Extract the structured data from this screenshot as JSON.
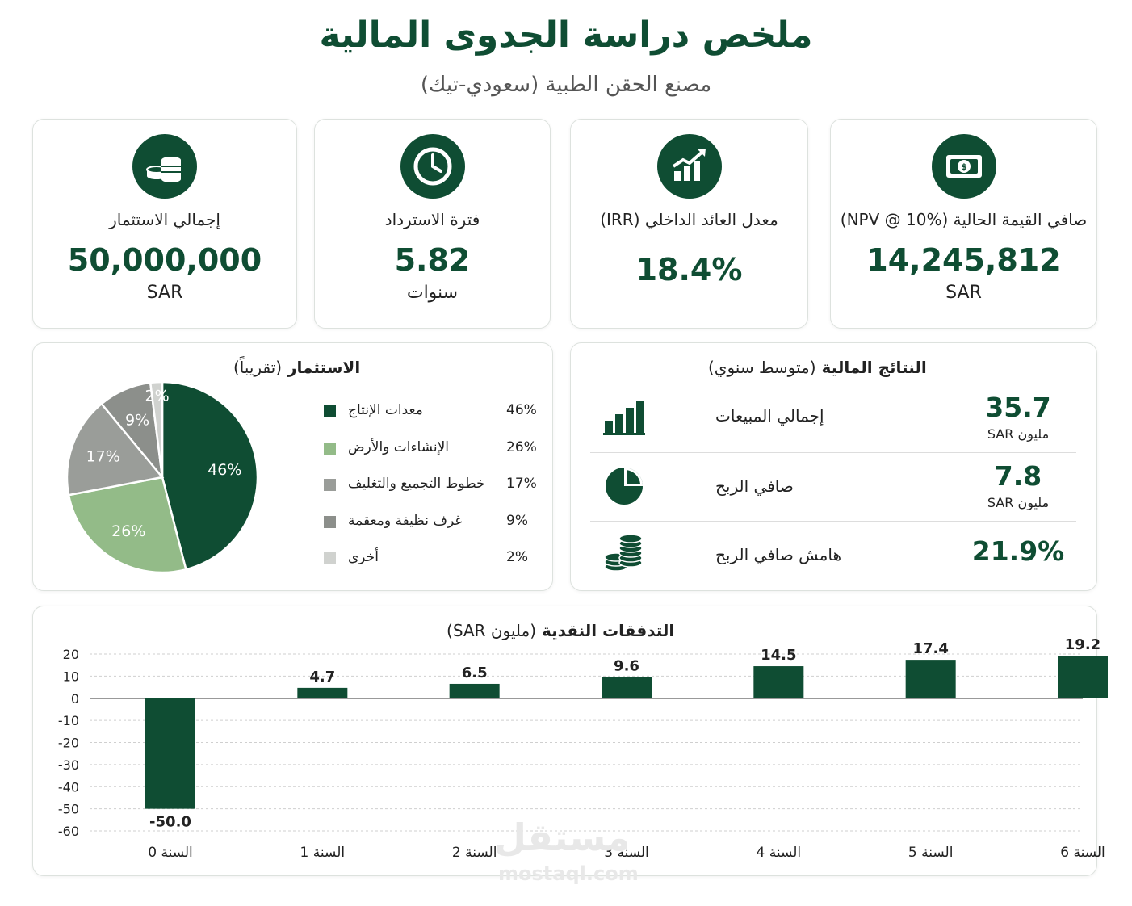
{
  "header": {
    "title": "ملخص دراسة الجدوى المالية",
    "subtitle": "مصنع الحقن الطبية (سعودي-تيك)"
  },
  "kpis": [
    {
      "label": "إجمالي الاستثمار",
      "value": "50,000,000",
      "unit": "SAR",
      "icon": "coins-icon"
    },
    {
      "label": "فترة الاسترداد",
      "value": "5.82",
      "unit": "سنوات",
      "icon": "clock-icon"
    },
    {
      "label": "معدل العائد الداخلي (IRR)",
      "value": "18.4%",
      "unit": "",
      "icon": "growth-chart-icon"
    },
    {
      "label": "صافي القيمة الحالية (NPV @ 10%)",
      "value": "14,245,812",
      "unit": "SAR",
      "icon": "banknote-icon"
    }
  ],
  "investment": {
    "title": "الاستثمار",
    "title_note": "(تقريباً)"
  },
  "results": {
    "title": "النتائج المالية",
    "title_note": "(متوسط سنوي)",
    "rows": [
      {
        "label": "إجمالي المبيعات",
        "value": "35.7",
        "unit": "مليون SAR",
        "icon": "bar-chart-icon"
      },
      {
        "label": "صافي الربح",
        "value": "7.8",
        "unit": "مليون SAR",
        "icon": "pie-chart-icon"
      },
      {
        "label": "هامش صافي الربح",
        "value": "21.9%",
        "unit": "",
        "icon": "coin-stack-icon"
      }
    ]
  },
  "cashflow": {
    "title": "التدفقات النقدية",
    "title_note": "(مليون SAR)"
  },
  "watermark": {
    "arabic": "مستقل",
    "latin": "mostaql.com"
  },
  "colors": {
    "primary": "#0f4d33",
    "light_green": "#93bb88",
    "mid_gray": "#9a9d99",
    "dark_gray": "#8c8f8b",
    "light_gray": "#d0d2cf"
  },
  "chart_data": [
    {
      "type": "pie",
      "title": "الاستثمار (تقريباً)",
      "categories": [
        "معدات الإنتاج",
        "الإنشاءات والأرض",
        "خطوط التجميع والتغليف",
        "غرف نظيفة ومعقمة",
        "أخرى"
      ],
      "values": [
        46,
        26,
        17,
        9,
        2
      ],
      "value_labels": [
        "46%",
        "26%",
        "17%",
        "9%",
        "2%"
      ],
      "colors": [
        "#0f4d33",
        "#93bb88",
        "#9a9d99",
        "#8c8f8b",
        "#d0d2cf"
      ],
      "legend": "right"
    },
    {
      "type": "bar",
      "title": "التدفقات النقدية (مليون SAR)",
      "categories": [
        "السنة 0",
        "السنة 1",
        "السنة 2",
        "السنة 3",
        "السنة 4",
        "السنة 5",
        "السنة 6"
      ],
      "values": [
        -50.0,
        4.7,
        6.5,
        9.6,
        14.5,
        17.4,
        19.2
      ],
      "value_labels": [
        "-50.0",
        "4.7",
        "6.5",
        "9.6",
        "14.5",
        "17.4",
        "19.2"
      ],
      "ylim": [
        -60,
        20
      ],
      "yticks": [
        20,
        10,
        0,
        -10,
        -20,
        -30,
        -40,
        -50,
        -60
      ],
      "grid": true,
      "color": "#0f4d33"
    }
  ]
}
